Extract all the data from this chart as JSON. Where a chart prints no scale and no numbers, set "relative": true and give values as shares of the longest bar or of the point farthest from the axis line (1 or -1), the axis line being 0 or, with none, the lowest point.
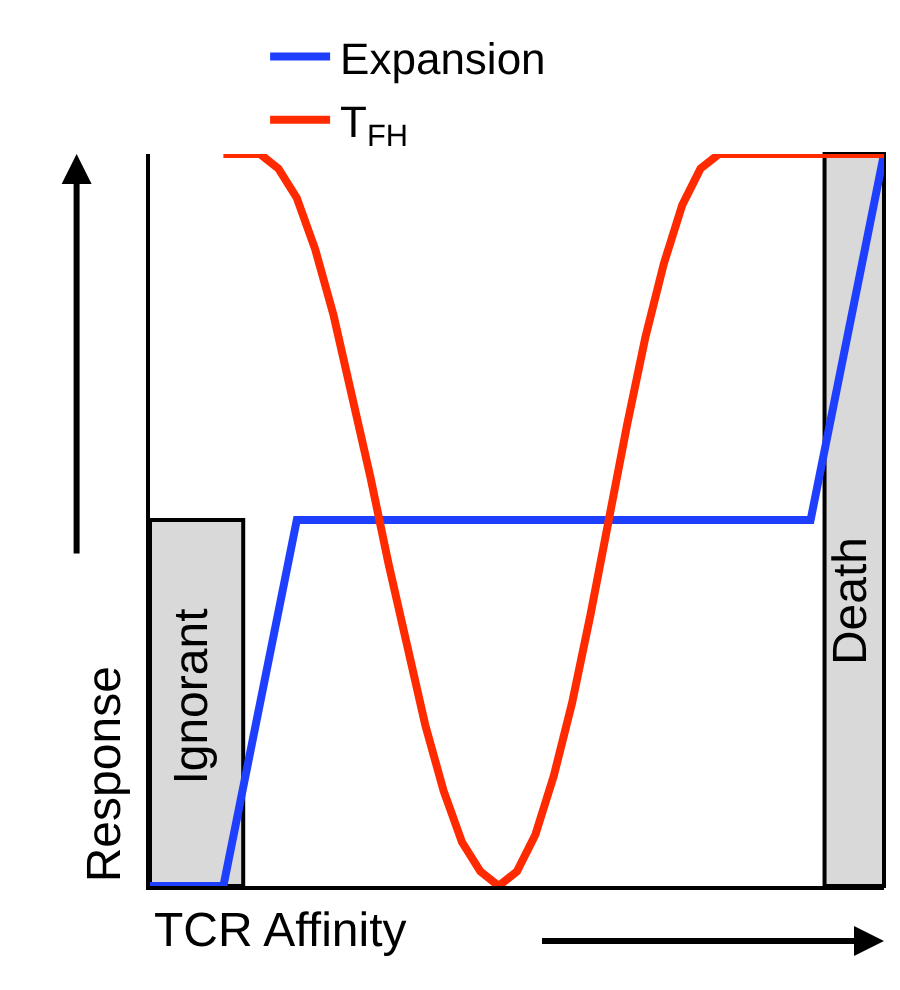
{
  "chart_data": {
    "type": "line",
    "relative": true,
    "xlabel": "TCR Affinity",
    "ylabel": "Response",
    "categories": [
      null,
      null,
      null,
      null,
      null,
      null,
      null,
      null,
      null,
      null,
      null,
      null,
      null,
      null,
      null,
      null,
      null,
      null,
      null,
      null,
      null,
      null,
      null,
      null,
      null,
      null,
      null,
      null,
      null,
      null,
      null,
      null,
      null,
      null,
      null,
      null,
      null,
      null,
      null,
      null,
      null
    ],
    "series": [
      {
        "name": "Expansion",
        "color": "#1f3fff",
        "values": [
          0,
          0,
          0,
          0,
          0,
          0.125,
          0.25,
          0.375,
          0.5,
          0.5,
          0.5,
          0.5,
          0.5,
          0.5,
          0.5,
          0.5,
          0.5,
          0.5,
          0.5,
          0.5,
          0.5,
          0.5,
          0.5,
          0.5,
          0.5,
          0.5,
          0.5,
          0.5,
          0.5,
          0.5,
          0.5,
          0.5,
          0.5,
          0.5,
          0.5,
          0.5,
          0.5,
          0.625,
          0.75,
          0.875,
          1
        ]
      },
      {
        "name": "T$_{FH}$",
        "color": "#ff2a00",
        "values": [
          null,
          null,
          null,
          null,
          1,
          1,
          1,
          0.98,
          0.94,
          0.87,
          0.78,
          0.67,
          0.56,
          0.44,
          0.33,
          0.22,
          0.13,
          0.06,
          0.02,
          0,
          0.02,
          0.07,
          0.15,
          0.25,
          0.37,
          0.5,
          0.63,
          0.75,
          0.85,
          0.93,
          0.98,
          1,
          1,
          1,
          1,
          1,
          1,
          1,
          1,
          1,
          1
        ]
      }
    ],
    "annotations": [
      "Ignorant",
      "Death"
    ],
    "legend": "top",
    "grid": false,
    "marker": "none",
    "line_style": "solid",
    "tick_labels": false
  }
}
